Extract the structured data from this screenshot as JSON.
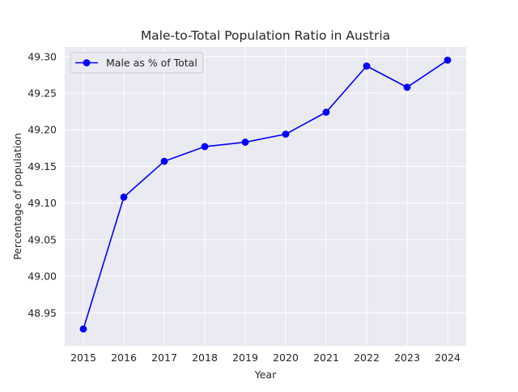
{
  "chart_data": {
    "type": "line",
    "title": "Male-to-Total Population Ratio in Austria",
    "xlabel": "Year",
    "ylabel": "Percentage of population",
    "x": [
      "2015",
      "2016",
      "2017",
      "2018",
      "2019",
      "2020",
      "2021",
      "2022",
      "2023",
      "2024"
    ],
    "series": [
      {
        "name": "Male as % of Total",
        "values": [
          48.928,
          49.108,
          49.157,
          49.177,
          49.183,
          49.194,
          49.224,
          49.287,
          49.258,
          49.295
        ],
        "color": "#0000ff",
        "marker": "circle"
      }
    ],
    "yticks": [
      "48.95",
      "49.00",
      "49.05",
      "49.10",
      "49.15",
      "49.20",
      "49.25",
      "49.30"
    ],
    "ylim": [
      48.905,
      49.313
    ],
    "grid": true,
    "legend_position": "upper-left",
    "plot_background": "#eaeaf2",
    "grid_color": "#ffffff"
  }
}
